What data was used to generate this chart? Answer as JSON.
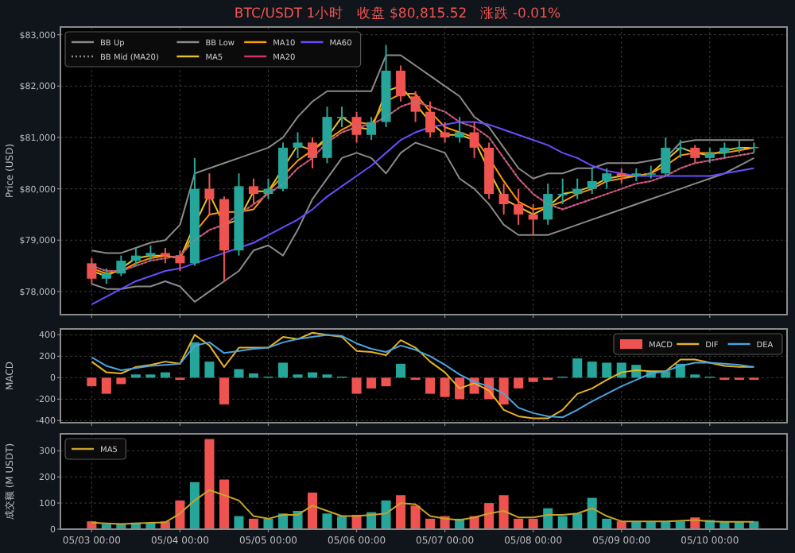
{
  "chart_data": [
    {
      "type": "candlestick",
      "title": "BTC/USDT 1小时   收盘 $80,815.52   涨跌 -0.01%",
      "ylabel": "Price (USD)",
      "x": [
        "--05-03T00:00",
        "--05-03T04:00",
        "--05-03T08:00",
        "--05-03T12:00",
        "--05-03T16:00",
        "--05-03T20:00",
        "--05-04T00:00",
        "--05-04T04:00",
        "--05-04T08:00",
        "--05-04T12:00",
        "--05-04T16:00",
        "--05-04T20:00",
        "--05-05T00:00",
        "--05-05T04:00",
        "--05-05T08:00",
        "--05-05T12:00",
        "--05-05T16:00",
        "--05-05T20:00",
        "--05-06T00:00",
        "--05-06T04:00",
        "--05-06T08:00",
        "--05-06T12:00",
        "--05-06T16:00",
        "--05-06T20:00",
        "--05-07T00:00",
        "--05-07T04:00",
        "--05-07T08:00",
        "--05-07T12:00",
        "--05-07T16:00",
        "--05-07T20:00",
        "--05-08T00:00",
        "--05-08T04:00",
        "--05-08T08:00",
        "--05-08T12:00",
        "--05-08T16:00",
        "--05-08T20:00",
        "--05-09T00:00",
        "--05-09T04:00",
        "--05-09T08:00",
        "--05-09T12:00",
        "--05-09T16:00",
        "--05-09T20:00",
        "--05-10T00:00",
        "--05-10T04:00",
        "--05-10T08:00",
        "--05-10T12:00"
      ],
      "ohlc": [
        [
          78550,
          78650,
          78150,
          78250
        ],
        [
          78250,
          78450,
          78150,
          78350
        ],
        [
          78350,
          78700,
          78300,
          78600
        ],
        [
          78600,
          78850,
          78500,
          78700
        ],
        [
          78700,
          78900,
          78600,
          78750
        ],
        [
          78750,
          78850,
          78550,
          78700
        ],
        [
          78700,
          78800,
          78400,
          78550
        ],
        [
          78550,
          80600,
          78500,
          80000
        ],
        [
          80000,
          80300,
          79500,
          79800
        ],
        [
          79800,
          79850,
          78200,
          78800
        ],
        [
          78800,
          80300,
          78700,
          80050
        ],
        [
          80050,
          80200,
          79700,
          79900
        ],
        [
          79900,
          80200,
          79800,
          80000
        ],
        [
          80000,
          80900,
          79950,
          80800
        ],
        [
          80800,
          81100,
          80600,
          80900
        ],
        [
          80900,
          81000,
          80400,
          80600
        ],
        [
          80600,
          81600,
          80500,
          81400
        ],
        [
          81400,
          81600,
          81200,
          81400
        ],
        [
          81400,
          81500,
          80900,
          81050
        ],
        [
          81050,
          81400,
          80950,
          81300
        ],
        [
          81300,
          82800,
          81200,
          82300
        ],
        [
          82300,
          82400,
          81700,
          81800
        ],
        [
          81800,
          81900,
          81300,
          81500
        ],
        [
          81500,
          81700,
          81000,
          81100
        ],
        [
          81100,
          81300,
          80900,
          81000
        ],
        [
          81000,
          81400,
          80900,
          81100
        ],
        [
          81100,
          81300,
          80600,
          80800
        ],
        [
          80800,
          80900,
          79800,
          79900
        ],
        [
          79900,
          80100,
          79500,
          79700
        ],
        [
          79700,
          80000,
          79300,
          79500
        ],
        [
          79500,
          79700,
          79100,
          79400
        ],
        [
          79400,
          80100,
          79300,
          79900
        ],
        [
          79900,
          80200,
          79700,
          79900
        ],
        [
          79900,
          80200,
          79800,
          80000
        ],
        [
          80000,
          80400,
          79900,
          80150
        ],
        [
          80150,
          80400,
          80000,
          80300
        ],
        [
          80300,
          80400,
          80100,
          80250
        ],
        [
          80250,
          80400,
          80150,
          80300
        ],
        [
          80300,
          80450,
          80200,
          80300
        ],
        [
          80300,
          81000,
          80250,
          80800
        ],
        [
          80800,
          80950,
          80600,
          80800
        ],
        [
          80800,
          80850,
          80500,
          80600
        ],
        [
          80600,
          80800,
          80500,
          80700
        ],
        [
          80700,
          80900,
          80600,
          80800
        ],
        [
          80800,
          80950,
          80700,
          80800
        ],
        [
          80800,
          80900,
          80700,
          80815.52
        ]
      ],
      "colors": [
        "#ef5350",
        "#26a69a",
        "#26a69a",
        "#26a69a",
        "#26a69a",
        "#ef5350",
        "#ef5350",
        "#26a69a",
        "#ef5350",
        "#ef5350",
        "#26a69a",
        "#ef5350",
        "#26a69a",
        "#26a69a",
        "#26a69a",
        "#ef5350",
        "#26a69a",
        "#26a69a",
        "#ef5350",
        "#26a69a",
        "#26a69a",
        "#ef5350",
        "#ef5350",
        "#ef5350",
        "#ef5350",
        "#26a69a",
        "#ef5350",
        "#ef5350",
        "#ef5350",
        "#ef5350",
        "#ef5350",
        "#26a69a",
        "#26a69a",
        "#26a69a",
        "#26a69a",
        "#26a69a",
        "#ef5350",
        "#26a69a",
        "#26a69a",
        "#26a69a",
        "#26a69a",
        "#ef5350",
        "#26a69a",
        "#26a69a",
        "#26a69a",
        "#26a69a"
      ],
      "series": [
        {
          "name": "BB Up",
          "type": "line",
          "color": "#8a8a8a",
          "line_style": "solid",
          "values": [
            78800,
            78750,
            78750,
            78850,
            78950,
            79000,
            79300,
            80300,
            80400,
            80500,
            80600,
            80700,
            80800,
            81000,
            81400,
            81700,
            81900,
            81900,
            81900,
            81900,
            82600,
            82600,
            82400,
            82200,
            82000,
            81800,
            81400,
            81200,
            80800,
            80400,
            80200,
            80300,
            80300,
            80400,
            80400,
            80500,
            80500,
            80500,
            80550,
            80600,
            80900,
            80950,
            80950,
            80950,
            80950,
            80950
          ]
        },
        {
          "name": "BB Mid (MA20)",
          "type": "line",
          "color": "#8a8a8a",
          "line_style": "dotted",
          "values": [
            78500,
            78400,
            78400,
            78500,
            78600,
            78650,
            78700,
            79000,
            79200,
            79300,
            79500,
            79700,
            79900,
            80100,
            80400,
            80600,
            80900,
            81100,
            81200,
            81250,
            81400,
            81600,
            81700,
            81600,
            81500,
            81300,
            81200,
            81000,
            80600,
            80200,
            79900,
            79700,
            79600,
            79700,
            79800,
            79900,
            80000,
            80100,
            80150,
            80250,
            80400,
            80500,
            80550,
            80600,
            80650,
            80700
          ]
        },
        {
          "name": "BB Low",
          "type": "line",
          "color": "#8a8a8a",
          "line_style": "solid",
          "values": [
            78150,
            78050,
            78050,
            78100,
            78100,
            78200,
            78100,
            77800,
            78000,
            78200,
            78400,
            78800,
            78900,
            78700,
            79200,
            79800,
            80200,
            80600,
            80700,
            80600,
            80300,
            80700,
            80900,
            80800,
            80700,
            80200,
            80000,
            79700,
            79300,
            79100,
            79100,
            79100,
            79200,
            79300,
            79400,
            79500,
            79600,
            79700,
            79800,
            79900,
            80000,
            80100,
            80200,
            80300,
            80450,
            80600
          ]
        },
        {
          "name": "MA5",
          "type": "line",
          "color": "#e6c229",
          "line_style": "solid",
          "values": [
            78400,
            78300,
            78450,
            78650,
            78700,
            78700,
            78650,
            79300,
            79900,
            79300,
            79400,
            79950,
            79950,
            80400,
            80850,
            80750,
            81000,
            81400,
            81200,
            81150,
            81900,
            82000,
            81650,
            81300,
            81050,
            81050,
            80950,
            80350,
            79800,
            79650,
            79500,
            79650,
            79900,
            79950,
            80050,
            80200,
            80250,
            80250,
            80300,
            80550,
            80800,
            80700,
            80650,
            80750,
            80800,
            80800
          ]
        },
        {
          "name": "MA10",
          "type": "line",
          "color": "#ff9800",
          "line_style": "solid",
          "values": [
            78450,
            78350,
            78400,
            78550,
            78650,
            78700,
            78650,
            79150,
            79500,
            79550,
            79550,
            79600,
            79950,
            80250,
            80550,
            80750,
            80950,
            81150,
            81300,
            81250,
            81700,
            81850,
            81850,
            81500,
            81200,
            81100,
            81000,
            80600,
            80150,
            79750,
            79600,
            79650,
            79750,
            79900,
            80000,
            80150,
            80200,
            80250,
            80300,
            80450,
            80650,
            80700,
            80700,
            80700,
            80750,
            80800
          ]
        },
        {
          "name": "MA20",
          "type": "line",
          "color": "#d6336c",
          "line_style": "solid",
          "values": [
            78500,
            78400,
            78400,
            78500,
            78600,
            78650,
            78700,
            79000,
            79200,
            79300,
            79500,
            79700,
            79900,
            80100,
            80400,
            80600,
            80900,
            81100,
            81200,
            81250,
            81400,
            81600,
            81700,
            81600,
            81500,
            81300,
            81200,
            81000,
            80600,
            80200,
            79900,
            79700,
            79600,
            79700,
            79800,
            79900,
            80000,
            80100,
            80150,
            80250,
            80400,
            80500,
            80550,
            80600,
            80650,
            80700
          ]
        },
        {
          "name": "MA60",
          "type": "line",
          "color": "#6a4cff",
          "line_style": "solid",
          "values": [
            77750,
            77900,
            78050,
            78200,
            78300,
            78400,
            78450,
            78550,
            78650,
            78750,
            78850,
            78950,
            79100,
            79250,
            79400,
            79600,
            79850,
            80050,
            80250,
            80450,
            80700,
            80950,
            81100,
            81200,
            81250,
            81300,
            81300,
            81250,
            81150,
            81050,
            80950,
            80850,
            80700,
            80600,
            80450,
            80350,
            80300,
            80250,
            80250,
            80250,
            80250,
            80250,
            80250,
            80300,
            80350,
            80400
          ]
        }
      ],
      "xlim": [
        "--05-02T15:30",
        "--05-10T21:00"
      ],
      "ylim": [
        77550,
        83150
      ],
      "xticks": [
        {
          "value": "--05-03T00:00",
          "label": null
        },
        {
          "value": "--05-04T00:00",
          "label": null
        },
        {
          "value": "--05-05T00:00",
          "label": null
        },
        {
          "value": "--05-06T00:00",
          "label": null
        },
        {
          "value": "--05-07T00:00",
          "label": null
        },
        {
          "value": "--05-08T00:00",
          "label": null
        },
        {
          "value": "--05-09T00:00",
          "label": null
        },
        {
          "value": "--05-10T00:00",
          "label": null
        }
      ],
      "yticks": [
        {
          "value": 78000,
          "label": "$78,000"
        },
        {
          "value": 79000,
          "label": "$79,000"
        },
        {
          "value": 80000,
          "label": "$80,000"
        },
        {
          "value": 81000,
          "label": "$81,000"
        },
        {
          "value": 82000,
          "label": "$82,000"
        },
        {
          "value": 83000,
          "label": "$83,000"
        }
      ],
      "grid": true,
      "legend": "top left",
      "tick_labels": "y"
    },
    {
      "type": "line",
      "ylabel": "MACD",
      "x": [
        "--05-03T00:00",
        "--05-03T04:00",
        "--05-03T08:00",
        "--05-03T12:00",
        "--05-03T16:00",
        "--05-03T20:00",
        "--05-04T00:00",
        "--05-04T04:00",
        "--05-04T08:00",
        "--05-04T12:00",
        "--05-04T16:00",
        "--05-04T20:00",
        "--05-05T00:00",
        "--05-05T04:00",
        "--05-05T08:00",
        "--05-05T12:00",
        "--05-05T16:00",
        "--05-05T20:00",
        "--05-06T00:00",
        "--05-06T04:00",
        "--05-06T08:00",
        "--05-06T12:00",
        "--05-06T16:00",
        "--05-06T20:00",
        "--05-07T00:00",
        "--05-07T04:00",
        "--05-07T08:00",
        "--05-07T12:00",
        "--05-07T16:00",
        "--05-07T20:00",
        "--05-08T00:00",
        "--05-08T04:00",
        "--05-08T08:00",
        "--05-08T12:00",
        "--05-08T16:00",
        "--05-08T20:00",
        "--05-09T00:00",
        "--05-09T04:00",
        "--05-09T08:00",
        "--05-09T12:00",
        "--05-09T16:00",
        "--05-09T20:00",
        "--05-10T00:00",
        "--05-10T04:00",
        "--05-10T08:00",
        "--05-10T12:00"
      ],
      "series": [
        {
          "name": "MACD",
          "type": "bar",
          "colors": [
            "#ef5350",
            "#ef5350",
            "#ef5350",
            "#26a69a",
            "#26a69a",
            "#26a69a",
            "#ef5350",
            "#26a69a",
            "#26a69a",
            "#ef5350",
            "#26a69a",
            "#26a69a",
            "#26a69a",
            "#26a69a",
            "#26a69a",
            "#26a69a",
            "#26a69a",
            "#26a69a",
            "#ef5350",
            "#ef5350",
            "#ef5350",
            "#26a69a",
            "#ef5350",
            "#ef5350",
            "#ef5350",
            "#ef5350",
            "#ef5350",
            "#ef5350",
            "#ef5350",
            "#ef5350",
            "#ef5350",
            "#ef5350",
            "#26a69a",
            "#26a69a",
            "#26a69a",
            "#26a69a",
            "#26a69a",
            "#26a69a",
            "#26a69a",
            "#26a69a",
            "#26a69a",
            "#26a69a",
            "#26a69a",
            "#ef5350",
            "#ef5350",
            "#ef5350"
          ],
          "color": "#ef5350",
          "values": [
            -80,
            -150,
            -60,
            30,
            30,
            50,
            -20,
            330,
            150,
            -250,
            80,
            40,
            10,
            140,
            30,
            50,
            30,
            10,
            -150,
            -100,
            -80,
            130,
            -20,
            -150,
            -180,
            -200,
            -150,
            -200,
            -250,
            -100,
            -40,
            -20,
            10,
            180,
            150,
            140,
            140,
            120,
            60,
            60,
            130,
            30,
            10,
            -20,
            -20,
            -20
          ]
        },
        {
          "name": "DIF",
          "type": "line",
          "color": "#e6b422",
          "line_style": "solid",
          "values": [
            150,
            50,
            40,
            100,
            120,
            150,
            130,
            400,
            300,
            100,
            280,
            280,
            280,
            380,
            360,
            420,
            400,
            380,
            250,
            240,
            210,
            350,
            280,
            150,
            50,
            -100,
            -50,
            -120,
            -300,
            -360,
            -380,
            -380,
            -300,
            -150,
            -100,
            -20,
            50,
            70,
            60,
            60,
            170,
            170,
            140,
            110,
            100,
            100
          ]
        },
        {
          "name": "DEA",
          "type": "line",
          "color": "#4aa3df",
          "line_style": "solid",
          "values": [
            190,
            110,
            70,
            90,
            110,
            120,
            130,
            300,
            330,
            230,
            250,
            270,
            280,
            330,
            360,
            380,
            400,
            390,
            320,
            270,
            240,
            300,
            260,
            200,
            120,
            30,
            -40,
            -80,
            -150,
            -280,
            -330,
            -360,
            -370,
            -300,
            -220,
            -150,
            -80,
            -20,
            40,
            60,
            110,
            140,
            140,
            130,
            120,
            100
          ]
        }
      ],
      "xlim": [
        "--05-02T15:30",
        "--05-10T21:00"
      ],
      "ylim": [
        -420,
        455
      ],
      "xticks": [
        {
          "value": "--05-03T00:00",
          "label": null
        },
        {
          "value": "--05-04T00:00",
          "label": null
        },
        {
          "value": "--05-05T00:00",
          "label": null
        },
        {
          "value": "--05-06T00:00",
          "label": null
        },
        {
          "value": "--05-07T00:00",
          "label": null
        },
        {
          "value": "--05-08T00:00",
          "label": null
        },
        {
          "value": "--05-09T00:00",
          "label": null
        },
        {
          "value": "--05-10T00:00",
          "label": null
        }
      ],
      "yticks": [
        -400,
        -200,
        0,
        200,
        400
      ],
      "grid": true,
      "legend": "top right",
      "tick_labels": "y"
    },
    {
      "type": "bar",
      "ylabel": "成交额 (M USDT)",
      "x": [
        "--05-03T00:00",
        "--05-03T04:00",
        "--05-03T08:00",
        "--05-03T12:00",
        "--05-03T16:00",
        "--05-03T20:00",
        "--05-04T00:00",
        "--05-04T04:00",
        "--05-04T08:00",
        "--05-04T12:00",
        "--05-04T16:00",
        "--05-04T20:00",
        "--05-05T00:00",
        "--05-05T04:00",
        "--05-05T08:00",
        "--05-05T12:00",
        "--05-05T16:00",
        "--05-05T20:00",
        "--05-06T00:00",
        "--05-06T04:00",
        "--05-06T08:00",
        "--05-06T12:00",
        "--05-06T16:00",
        "--05-06T20:00",
        "--05-07T00:00",
        "--05-07T04:00",
        "--05-07T08:00",
        "--05-07T12:00",
        "--05-07T16:00",
        "--05-07T20:00",
        "--05-08T00:00",
        "--05-08T04:00",
        "--05-08T08:00",
        "--05-08T12:00",
        "--05-08T16:00",
        "--05-08T20:00",
        "--05-09T00:00",
        "--05-09T04:00",
        "--05-09T08:00",
        "--05-09T12:00",
        "--05-09T16:00",
        "--05-09T20:00",
        "--05-10T00:00",
        "--05-10T04:00",
        "--05-10T08:00",
        "--05-10T12:00"
      ],
      "series": [
        {
          "type": "bar",
          "colors": [
            "#ef5350",
            "#26a69a",
            "#26a69a",
            "#26a69a",
            "#26a69a",
            "#ef5350",
            "#ef5350",
            "#26a69a",
            "#ef5350",
            "#ef5350",
            "#26a69a",
            "#ef5350",
            "#26a69a",
            "#26a69a",
            "#26a69a",
            "#ef5350",
            "#26a69a",
            "#26a69a",
            "#ef5350",
            "#26a69a",
            "#26a69a",
            "#ef5350",
            "#ef5350",
            "#ef5350",
            "#ef5350",
            "#26a69a",
            "#ef5350",
            "#ef5350",
            "#ef5350",
            "#ef5350",
            "#ef5350",
            "#26a69a",
            "#26a69a",
            "#26a69a",
            "#26a69a",
            "#26a69a",
            "#ef5350",
            "#26a69a",
            "#26a69a",
            "#26a69a",
            "#26a69a",
            "#ef5350",
            "#26a69a",
            "#26a69a",
            "#26a69a",
            "#26a69a"
          ],
          "values": [
            30,
            20,
            20,
            25,
            25,
            30,
            110,
            180,
            345,
            190,
            50,
            40,
            40,
            60,
            70,
            140,
            60,
            50,
            55,
            65,
            110,
            130,
            90,
            40,
            50,
            40,
            50,
            100,
            130,
            40,
            40,
            80,
            50,
            60,
            120,
            40,
            30,
            30,
            30,
            30,
            30,
            45,
            35,
            30,
            30,
            30
          ]
        },
        {
          "name": "MA5",
          "type": "line",
          "color": "#c9a227",
          "line_style": "solid",
          "values": [
            25,
            22,
            20,
            22,
            24,
            26,
            60,
            110,
            150,
            130,
            110,
            50,
            40,
            55,
            55,
            90,
            70,
            50,
            50,
            55,
            60,
            100,
            95,
            50,
            40,
            35,
            45,
            60,
            70,
            45,
            45,
            55,
            55,
            60,
            80,
            50,
            30,
            30,
            30,
            30,
            32,
            35,
            30,
            28,
            28,
            28
          ]
        }
      ],
      "xlim": [
        "--05-02T15:30",
        "--05-10T21:00"
      ],
      "ylim": [
        0,
        365
      ],
      "xticks": [
        {
          "value": "--05-03T00:00",
          "label": "05/03 00:00"
        },
        {
          "value": "--05-04T00:00",
          "label": "05/04 00:00"
        },
        {
          "value": "--05-05T00:00",
          "label": "05/05 00:00"
        },
        {
          "value": "--05-06T00:00",
          "label": "05/06 00:00"
        },
        {
          "value": "--05-07T00:00",
          "label": "05/07 00:00"
        },
        {
          "value": "--05-08T00:00",
          "label": "05/08 00:00"
        },
        {
          "value": "--05-09T00:00",
          "label": "05/09 00:00"
        },
        {
          "value": "--05-10T00:00",
          "label": "05/10 00:00"
        }
      ],
      "yticks": [
        0,
        100,
        200,
        300
      ],
      "grid": true,
      "legend": "top left"
    }
  ]
}
